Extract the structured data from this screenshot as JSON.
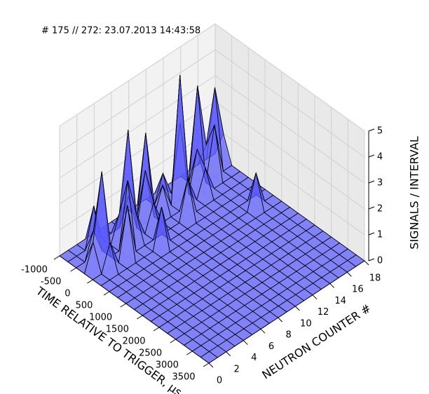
{
  "chart_data": {
    "type": "surface3d",
    "title": "# 175 // 272: 23.07.2013 14:43:58",
    "xlabel": "TIME RELATIVE TO TRIGGER, μs",
    "ylabel": "NEUTRON COUNTER #",
    "zlabel": "SIGNALS / INTERVAL",
    "color": "#5c5cff",
    "x": [
      -1000,
      -750,
      -500,
      -250,
      0,
      250,
      500,
      750,
      1000,
      1250,
      1500,
      1750,
      2000,
      2250,
      2500,
      2750,
      3000,
      3250,
      3500
    ],
    "y": [
      0,
      1,
      2,
      3,
      4,
      5,
      6,
      7,
      8,
      9,
      10,
      11,
      12,
      13,
      14,
      15,
      16,
      17,
      18
    ],
    "z": [
      [
        0,
        0,
        0,
        0,
        0,
        0,
        0,
        0,
        0,
        0,
        0,
        0,
        0,
        0,
        0,
        0,
        0,
        0,
        0
      ],
      [
        0,
        0,
        0,
        1,
        0,
        0,
        0,
        0,
        0,
        0,
        0,
        0,
        0,
        0,
        0,
        0,
        0,
        0,
        0
      ],
      [
        0,
        0,
        1,
        3.5,
        1,
        0,
        0,
        0,
        0,
        0,
        0,
        0,
        0,
        0,
        0,
        0,
        0,
        0,
        0
      ],
      [
        0,
        1.5,
        0,
        0,
        0,
        0,
        0,
        0,
        0,
        0,
        0,
        0,
        0,
        0,
        0,
        0,
        0,
        0,
        0
      ],
      [
        0,
        0,
        0,
        0,
        2,
        0,
        0,
        0,
        0,
        0,
        0,
        0,
        0,
        0,
        0,
        0,
        0,
        0,
        0
      ],
      [
        0,
        0,
        1,
        2.5,
        0,
        0,
        0,
        0,
        0,
        0,
        0,
        0,
        0,
        0,
        0,
        0,
        0,
        0,
        0
      ],
      [
        0,
        0,
        4,
        1,
        0,
        0,
        0,
        0,
        0,
        0,
        0,
        0,
        0,
        0,
        0,
        0,
        0,
        0,
        0
      ],
      [
        0,
        1,
        0,
        0,
        0,
        1.5,
        0,
        0,
        0,
        0,
        0,
        0,
        0,
        0,
        0,
        0,
        0,
        0,
        0
      ],
      [
        0,
        0,
        2,
        1,
        0,
        0,
        0,
        0,
        0,
        0,
        0,
        0,
        0,
        0,
        0,
        0,
        0,
        0,
        0
      ],
      [
        0,
        3,
        0,
        0,
        0,
        0,
        0,
        0,
        0,
        0,
        0,
        0,
        0,
        0,
        0,
        0,
        0,
        0,
        0
      ],
      [
        0,
        0,
        1,
        0,
        0,
        0,
        0,
        0,
        0,
        0,
        0,
        0,
        0,
        0,
        0,
        0,
        0,
        0,
        0
      ],
      [
        0,
        1,
        0,
        0,
        1.5,
        0,
        0,
        0,
        0,
        0,
        0,
        0,
        0,
        0,
        0,
        0,
        0,
        0,
        0
      ],
      [
        0,
        0,
        4.8,
        1,
        0,
        0,
        0,
        0,
        0,
        0,
        0,
        0,
        0,
        0,
        0,
        0,
        0,
        0,
        0
      ],
      [
        0,
        2.5,
        0,
        0,
        0,
        0,
        0,
        0,
        0,
        0,
        0,
        0,
        0,
        0,
        0,
        0,
        0,
        0,
        0
      ],
      [
        0,
        0,
        1.5,
        1,
        0,
        0,
        0,
        0,
        0,
        0,
        0,
        0,
        0,
        0,
        0,
        0,
        0,
        0,
        0
      ],
      [
        0,
        3.5,
        0,
        0,
        0,
        0,
        0,
        0,
        0,
        0,
        0,
        0,
        0,
        0,
        0,
        0,
        0,
        0,
        0
      ],
      [
        0,
        1,
        2,
        0,
        0,
        0,
        0,
        1.3,
        0,
        0,
        0,
        0,
        0,
        0,
        0,
        0,
        0,
        0,
        0
      ],
      [
        0,
        3,
        0,
        0,
        0,
        0,
        0,
        0,
        0,
        0,
        0,
        0,
        0,
        0,
        0,
        0,
        0,
        0,
        0
      ],
      [
        0,
        1,
        0,
        0,
        0,
        0,
        0,
        0,
        0,
        0,
        0,
        0,
        0,
        0,
        0,
        0,
        0,
        0,
        0
      ]
    ],
    "xlim": [
      -1000,
      3500
    ],
    "ylim": [
      0,
      18
    ],
    "zlim": [
      0,
      5
    ],
    "xticks": [
      -1000,
      -500,
      0,
      500,
      1000,
      1500,
      2000,
      2500,
      3000,
      3500
    ],
    "yticks": [
      0,
      2,
      4,
      6,
      8,
      10,
      12,
      14,
      16,
      18
    ],
    "zticks": [
      0,
      1,
      2,
      3,
      4,
      5
    ],
    "grid": true
  }
}
